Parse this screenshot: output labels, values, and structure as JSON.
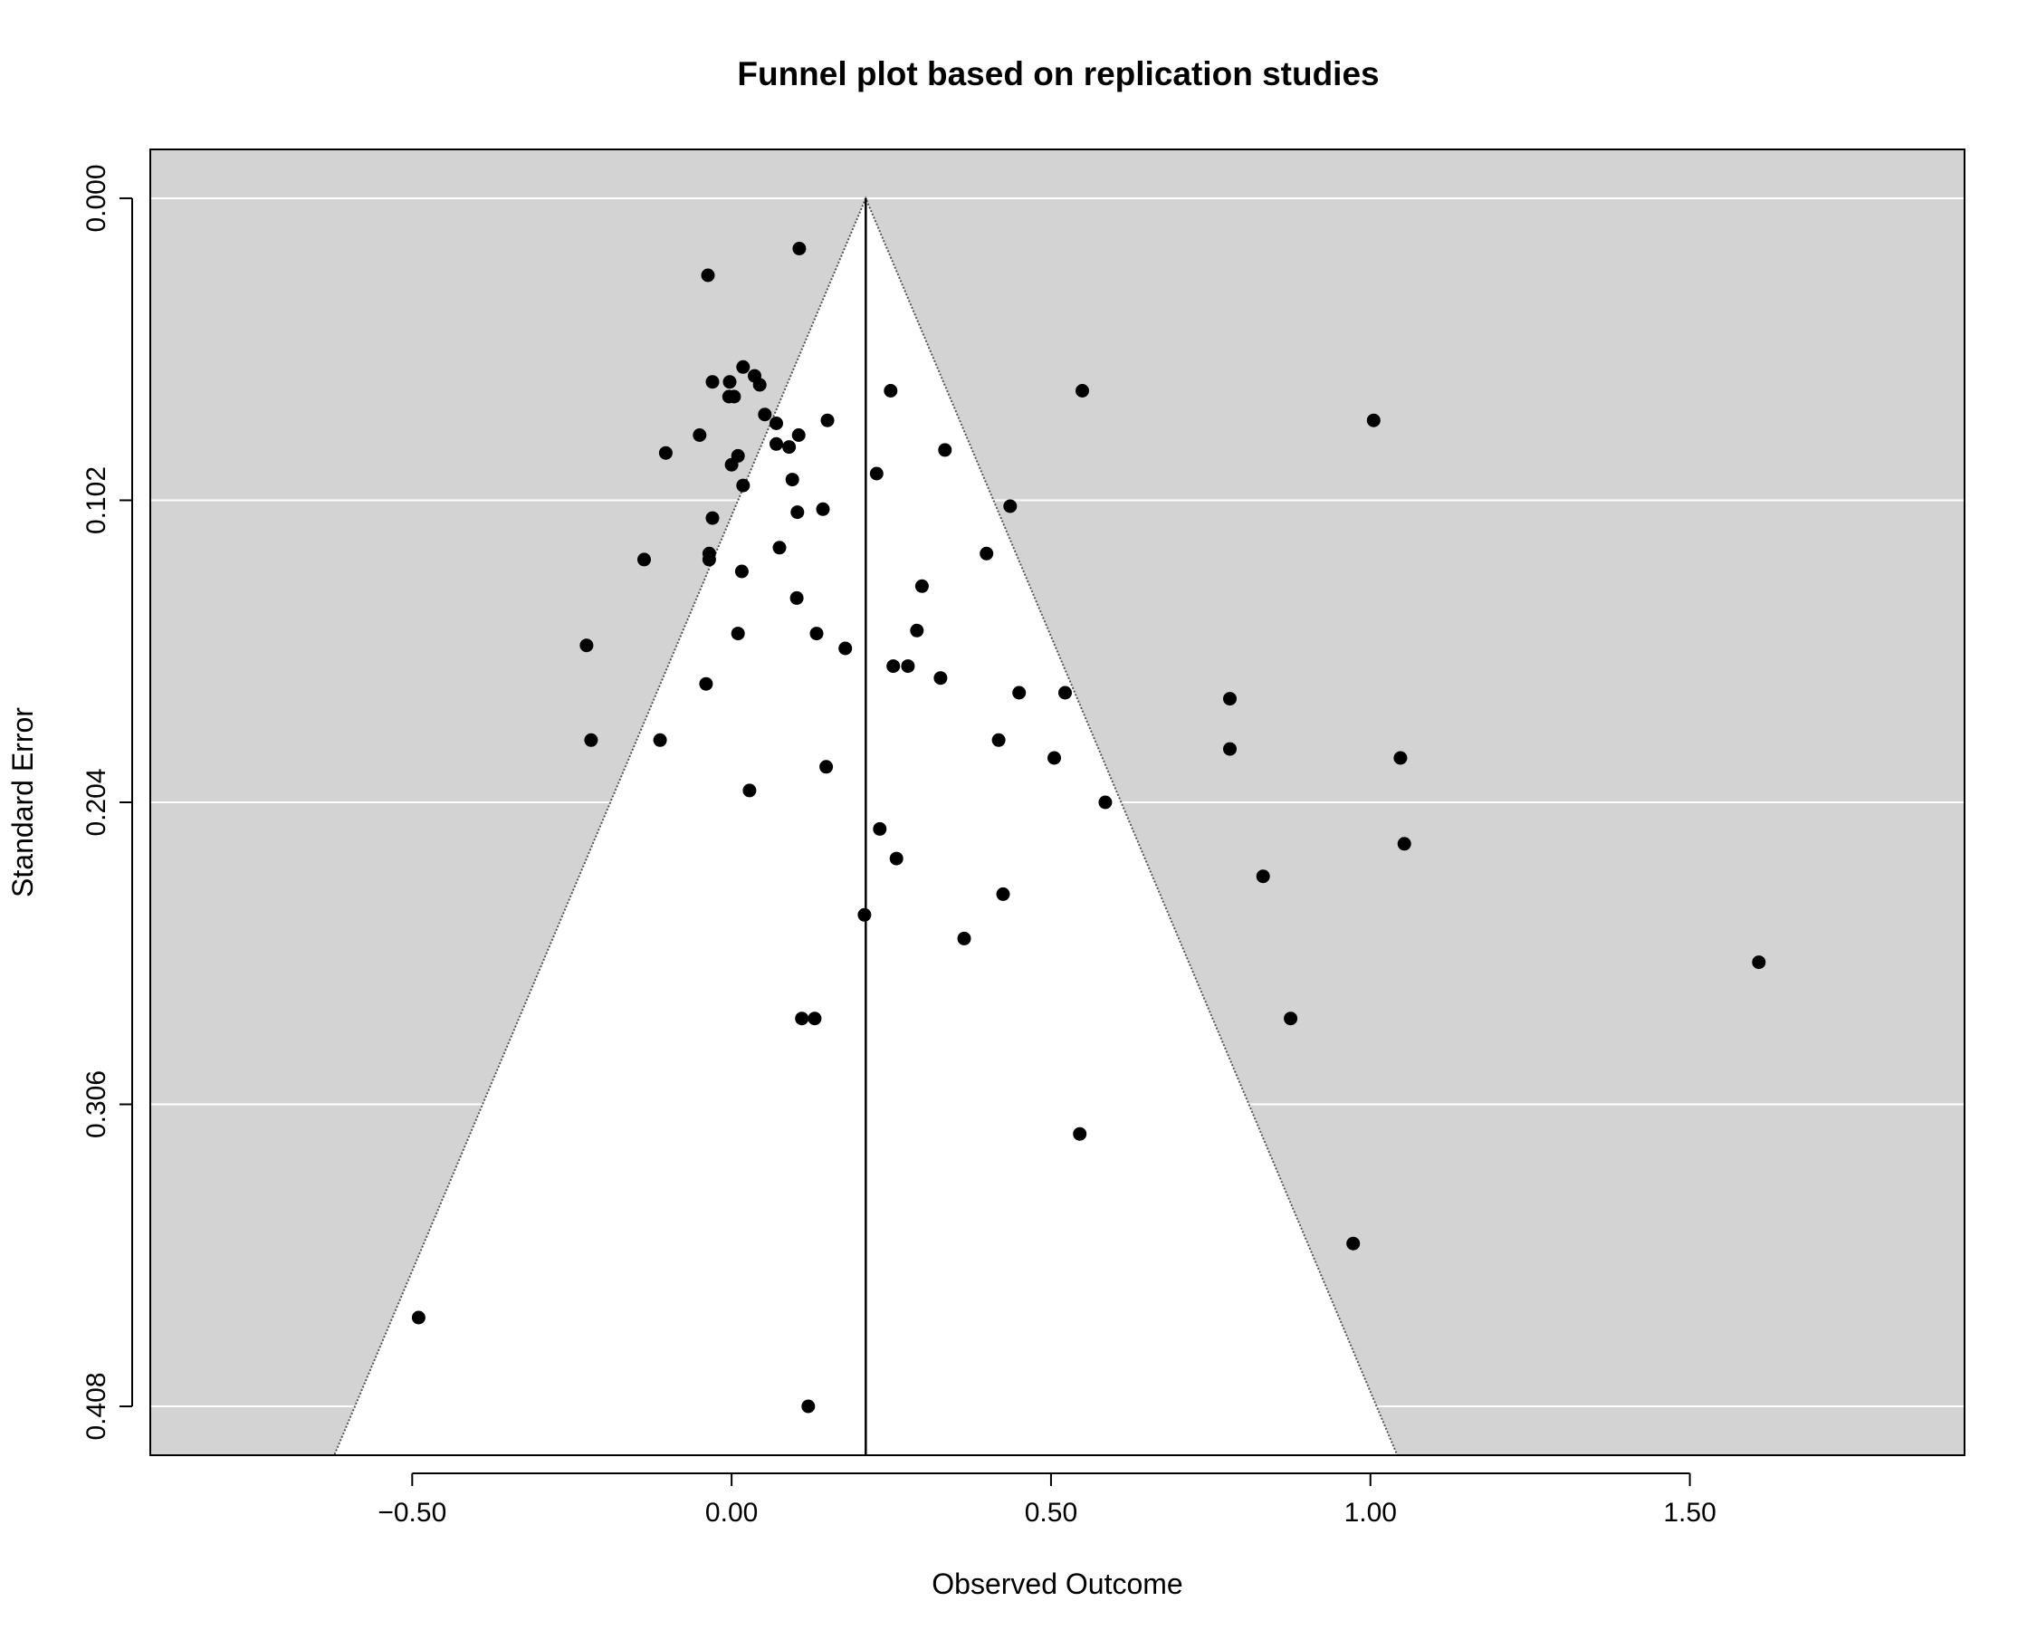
{
  "chart_data": {
    "type": "scatter",
    "subtype": "funnel",
    "title": "Funnel plot based on replication studies",
    "xlabel": "Observed Outcome",
    "ylabel": "Standard Error",
    "xlim": [
      -0.91,
      1.93
    ],
    "ylim": [
      0.4245,
      -0.0165
    ],
    "y_reversed": true,
    "x_ticks": [
      -0.5,
      0,
      0.5,
      1.0,
      1.5
    ],
    "x_tick_labels": [
      "−0.50",
      "0.00",
      "0.50",
      "1.00",
      "1.50"
    ],
    "y_ticks": [
      0,
      0.102,
      0.204,
      0.306,
      0.408
    ],
    "y_tick_labels": [
      "0.000",
      "0.102",
      "0.204",
      "0.306",
      "0.408"
    ],
    "grid": "horizontal",
    "background": "gray",
    "funnel": {
      "center": 0.21,
      "z": 1.96
    },
    "colors": {
      "background": "#d3d3d3",
      "funnel_fill": "#ffffff",
      "point": "#000000",
      "grid": "#ffffff",
      "reference_line": "#000000"
    },
    "points": [
      {
        "x": 0.106,
        "y": 0.017
      },
      {
        "x": -0.037,
        "y": 0.026
      },
      {
        "x": 0.018,
        "y": 0.057
      },
      {
        "x": -0.03,
        "y": 0.062
      },
      {
        "x": -0.003,
        "y": 0.062
      },
      {
        "x": 0.036,
        "y": 0.06
      },
      {
        "x": 0.044,
        "y": 0.063
      },
      {
        "x": 0.249,
        "y": 0.065
      },
      {
        "x": 0.549,
        "y": 0.065
      },
      {
        "x": -0.004,
        "y": 0.067
      },
      {
        "x": 0.004,
        "y": 0.067
      },
      {
        "x": 0.052,
        "y": 0.073
      },
      {
        "x": 0.07,
        "y": 0.076
      },
      {
        "x": 0.15,
        "y": 0.075
      },
      {
        "x": 1.005,
        "y": 0.075
      },
      {
        "x": -0.05,
        "y": 0.08
      },
      {
        "x": 0.105,
        "y": 0.08
      },
      {
        "x": 0.07,
        "y": 0.083
      },
      {
        "x": 0.09,
        "y": 0.084
      },
      {
        "x": -0.103,
        "y": 0.086
      },
      {
        "x": 0.334,
        "y": 0.085
      },
      {
        "x": 0.01,
        "y": 0.087
      },
      {
        "x": 0.0,
        "y": 0.09
      },
      {
        "x": 0.227,
        "y": 0.093
      },
      {
        "x": 0.095,
        "y": 0.095
      },
      {
        "x": 0.018,
        "y": 0.097
      },
      {
        "x": 0.436,
        "y": 0.104
      },
      {
        "x": 0.143,
        "y": 0.105
      },
      {
        "x": 0.103,
        "y": 0.106
      },
      {
        "x": -0.03,
        "y": 0.108
      },
      {
        "x": 0.075,
        "y": 0.118
      },
      {
        "x": -0.035,
        "y": 0.12
      },
      {
        "x": -0.035,
        "y": 0.122
      },
      {
        "x": -0.137,
        "y": 0.122
      },
      {
        "x": 0.399,
        "y": 0.12
      },
      {
        "x": 0.016,
        "y": 0.126
      },
      {
        "x": 0.298,
        "y": 0.131
      },
      {
        "x": 0.102,
        "y": 0.135
      },
      {
        "x": 0.29,
        "y": 0.146
      },
      {
        "x": 0.01,
        "y": 0.147
      },
      {
        "x": 0.133,
        "y": 0.147
      },
      {
        "x": -0.227,
        "y": 0.151
      },
      {
        "x": 0.178,
        "y": 0.152
      },
      {
        "x": 0.253,
        "y": 0.158
      },
      {
        "x": 0.276,
        "y": 0.158
      },
      {
        "x": 0.327,
        "y": 0.162
      },
      {
        "x": -0.04,
        "y": 0.164
      },
      {
        "x": 0.45,
        "y": 0.167
      },
      {
        "x": 0.522,
        "y": 0.167
      },
      {
        "x": 0.78,
        "y": 0.169
      },
      {
        "x": -0.22,
        "y": 0.183
      },
      {
        "x": -0.112,
        "y": 0.183
      },
      {
        "x": 0.418,
        "y": 0.183
      },
      {
        "x": 0.78,
        "y": 0.186
      },
      {
        "x": 0.505,
        "y": 0.189
      },
      {
        "x": 1.047,
        "y": 0.189
      },
      {
        "x": 0.148,
        "y": 0.192
      },
      {
        "x": 0.028,
        "y": 0.2
      },
      {
        "x": 0.585,
        "y": 0.204
      },
      {
        "x": 0.232,
        "y": 0.213
      },
      {
        "x": 1.053,
        "y": 0.218
      },
      {
        "x": 0.258,
        "y": 0.223
      },
      {
        "x": 0.832,
        "y": 0.229
      },
      {
        "x": 0.425,
        "y": 0.235
      },
      {
        "x": 0.208,
        "y": 0.242
      },
      {
        "x": 0.364,
        "y": 0.25
      },
      {
        "x": 1.608,
        "y": 0.258
      },
      {
        "x": 0.11,
        "y": 0.277
      },
      {
        "x": 0.13,
        "y": 0.277
      },
      {
        "x": 0.875,
        "y": 0.277
      },
      {
        "x": 0.545,
        "y": 0.316
      },
      {
        "x": 0.973,
        "y": 0.353
      },
      {
        "x": -0.49,
        "y": 0.378
      },
      {
        "x": 0.12,
        "y": 0.408
      }
    ]
  }
}
